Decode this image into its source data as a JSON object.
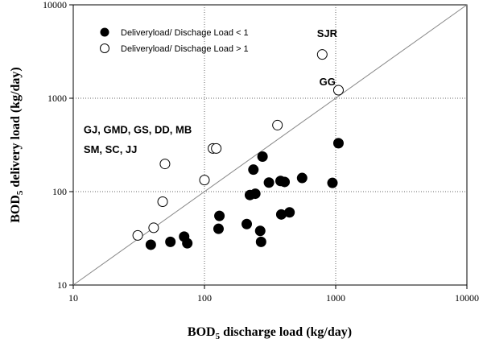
{
  "chart_data": {
    "type": "scatter",
    "xlabel": {
      "prefix": "BOD",
      "sub": "5",
      "suffix": " discharge load (kg/day)"
    },
    "ylabel": {
      "prefix": "BOD",
      "sub": "5",
      "suffix": " delivery load (kg/day)"
    },
    "x_scale": "log",
    "y_scale": "log",
    "xlim": [
      10,
      10000
    ],
    "ylim": [
      10,
      10000
    ],
    "x_ticks": [
      "10",
      "100",
      "1000",
      "10000"
    ],
    "y_ticks": [
      "10",
      "100",
      "1000",
      "10000"
    ],
    "grid": "dotted",
    "reference_line": {
      "from": [
        10,
        10
      ],
      "to": [
        10000,
        10000
      ]
    },
    "legend": {
      "position": "top-left",
      "entries": [
        {
          "label": "Deliveryload/ Dischage Load < 1",
          "marker": "filled-circle"
        },
        {
          "label": "Deliveryload/ Dischage Load > 1",
          "marker": "open-circle"
        }
      ]
    },
    "annotations": [
      {
        "text": "SJR",
        "x": 720,
        "y": 4500
      },
      {
        "text": "GG",
        "x": 750,
        "y": 1380
      },
      {
        "text": "GJ, GMD, GS, DD, MB",
        "x": 12,
        "y": 420
      },
      {
        "text": "SM, SC, JJ",
        "x": 12,
        "y": 260
      }
    ],
    "series": [
      {
        "name": "Deliveryload/ Dischage Load < 1",
        "marker": "filled",
        "points": [
          [
            39,
            27
          ],
          [
            55,
            29
          ],
          [
            70,
            33
          ],
          [
            74,
            28
          ],
          [
            128,
            40
          ],
          [
            130,
            55
          ],
          [
            210,
            45
          ],
          [
            222,
            92
          ],
          [
            236,
            172
          ],
          [
            244,
            95
          ],
          [
            266,
            38
          ],
          [
            270,
            29
          ],
          [
            277,
            237
          ],
          [
            310,
            125
          ],
          [
            380,
            130
          ],
          [
            385,
            57
          ],
          [
            408,
            127
          ],
          [
            445,
            60
          ],
          [
            555,
            140
          ],
          [
            945,
            124
          ],
          [
            1050,
            330
          ]
        ]
      },
      {
        "name": "Deliveryload/ Dischage Load > 1",
        "marker": "open",
        "points": [
          [
            31,
            34
          ],
          [
            41,
            41
          ],
          [
            48,
            78
          ],
          [
            50,
            198
          ],
          [
            100,
            133
          ],
          [
            116,
            290
          ],
          [
            123,
            290
          ],
          [
            360,
            515
          ],
          [
            790,
            2940
          ],
          [
            1050,
            1220
          ]
        ]
      }
    ]
  }
}
